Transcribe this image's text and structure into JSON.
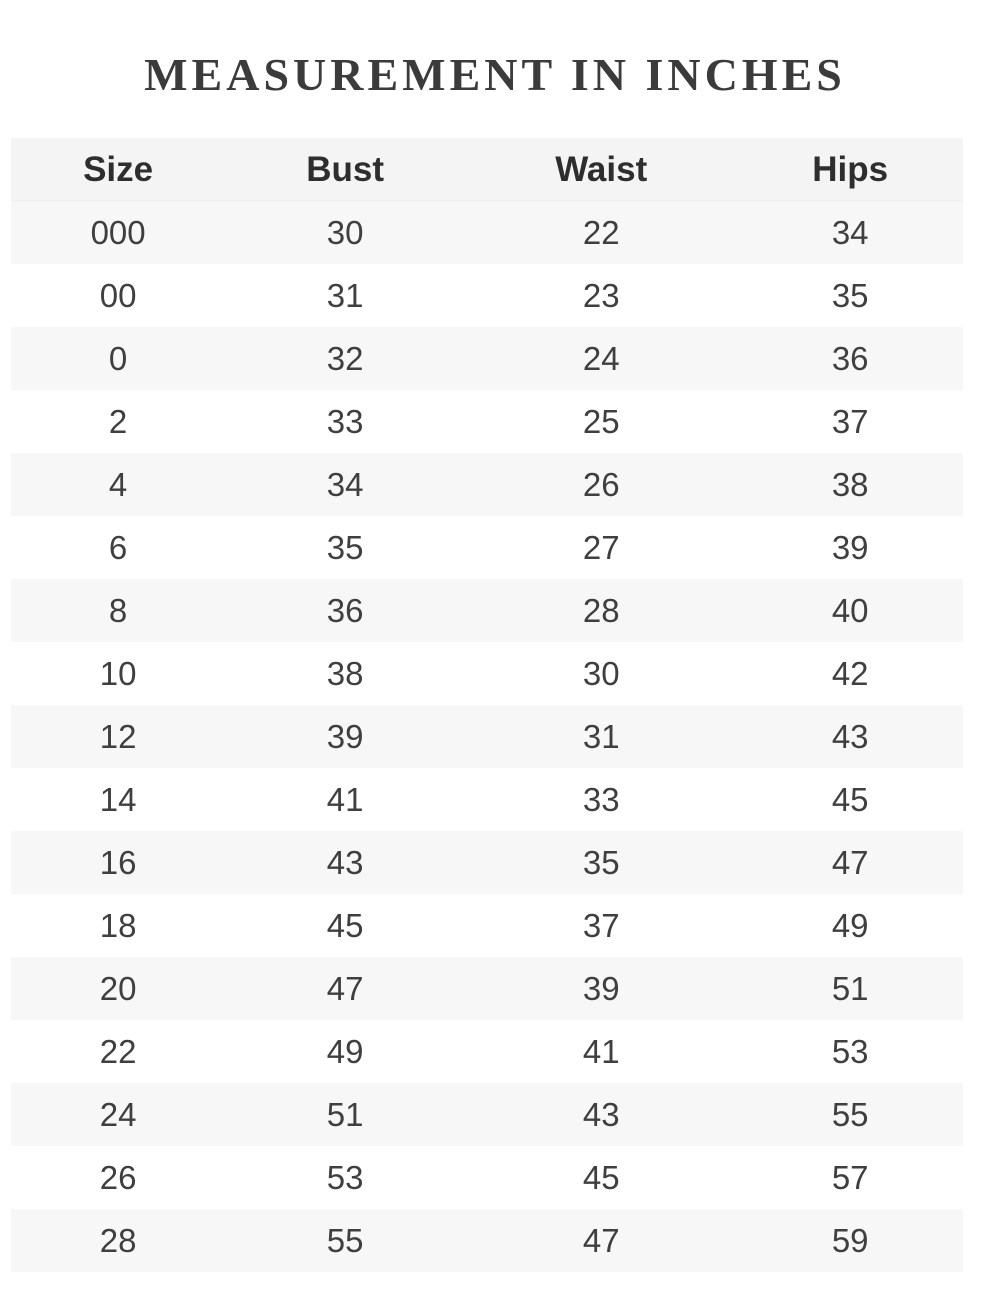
{
  "page": {
    "title": "MEASUREMENT IN INCHES"
  },
  "chart_data": {
    "type": "table",
    "title": "MEASUREMENT IN INCHES",
    "columns": [
      "Size",
      "Bust",
      "Waist",
      "Hips"
    ],
    "rows": [
      [
        "000",
        "30",
        "22",
        "34"
      ],
      [
        "00",
        "31",
        "23",
        "35"
      ],
      [
        "0",
        "32",
        "24",
        "36"
      ],
      [
        "2",
        "33",
        "25",
        "37"
      ],
      [
        "4",
        "34",
        "26",
        "38"
      ],
      [
        "6",
        "35",
        "27",
        "39"
      ],
      [
        "8",
        "36",
        "28",
        "40"
      ],
      [
        "10",
        "38",
        "30",
        "42"
      ],
      [
        "12",
        "39",
        "31",
        "43"
      ],
      [
        "14",
        "41",
        "33",
        "45"
      ],
      [
        "16",
        "43",
        "35",
        "47"
      ],
      [
        "18",
        "45",
        "37",
        "49"
      ],
      [
        "20",
        "47",
        "39",
        "51"
      ],
      [
        "22",
        "49",
        "41",
        "53"
      ],
      [
        "24",
        "51",
        "43",
        "55"
      ],
      [
        "26",
        "53",
        "45",
        "57"
      ],
      [
        "28",
        "55",
        "47",
        "59"
      ]
    ],
    "layout": {
      "striped": true,
      "stripe_pattern": "first-data-row-shaded-then-alternating",
      "header_background": "#f4f4f4",
      "stripe_background": "#f7f7f7"
    }
  },
  "colors": {
    "page_background": "#ffffff",
    "header_background": "#f4f4f4",
    "stripe_background": "#f7f7f7",
    "title_text": "#3b3b3b",
    "header_text": "#2e2e2e",
    "cell_text": "#3f3f3f"
  }
}
